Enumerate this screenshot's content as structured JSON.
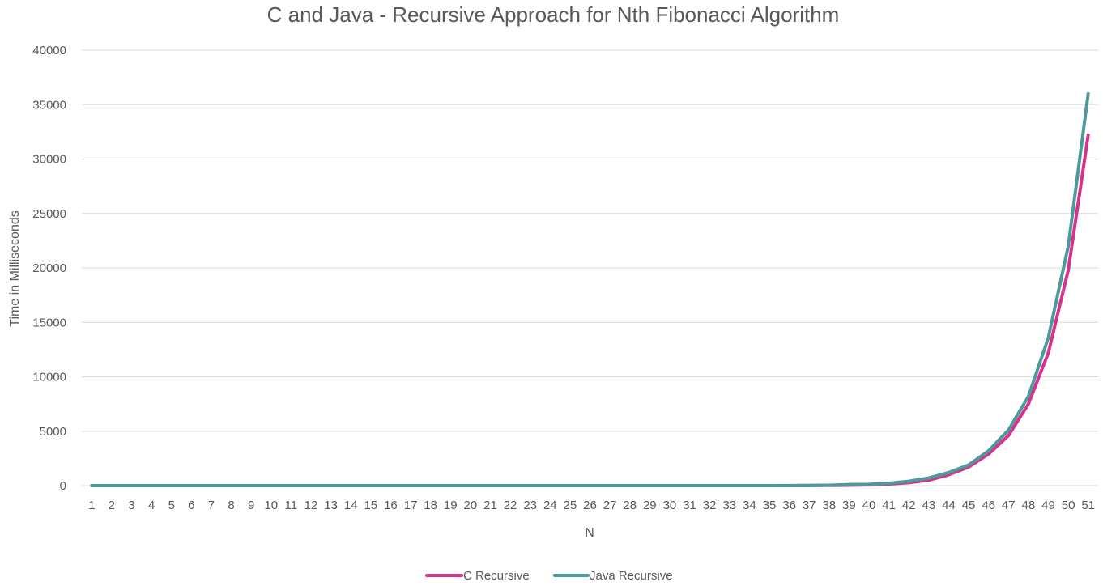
{
  "chart_data": {
    "type": "line",
    "title": "C and Java - Recursive Approach for Nth Fibonacci Algorithm",
    "xlabel": "N",
    "ylabel": "Time in Milliseconds",
    "ylim": [
      0,
      40000
    ],
    "yticks": [
      0,
      5000,
      10000,
      15000,
      20000,
      25000,
      30000,
      35000,
      40000
    ],
    "grid": true,
    "legend": "bottom",
    "categories": [
      "1",
      "2",
      "3",
      "4",
      "5",
      "6",
      "7",
      "8",
      "9",
      "10",
      "11",
      "12",
      "13",
      "14",
      "15",
      "16",
      "17",
      "18",
      "19",
      "20",
      "21",
      "22",
      "23",
      "24",
      "25",
      "26",
      "27",
      "28",
      "29",
      "30",
      "31",
      "32",
      "33",
      "34",
      "35",
      "36",
      "37",
      "38",
      "39",
      "40",
      "41",
      "42",
      "43",
      "44",
      "45",
      "46",
      "47",
      "48",
      "49",
      "50",
      "51"
    ],
    "series": [
      {
        "name": "C Recursive",
        "color": "#d6338f",
        "values": [
          0,
          0,
          0,
          0,
          0,
          0,
          0,
          0,
          0,
          0,
          0,
          0,
          0,
          0,
          0,
          0,
          0,
          0,
          0,
          0,
          0,
          0,
          0,
          0,
          0,
          0,
          0,
          0,
          0,
          0,
          0,
          0,
          0,
          0,
          0,
          0,
          10,
          20,
          40,
          70,
          150,
          270,
          500,
          1000,
          1700,
          2900,
          4600,
          7500,
          12200,
          19800,
          32200
        ]
      },
      {
        "name": "Java Recursive",
        "color": "#4e9a9a",
        "values": [
          0,
          0,
          0,
          0,
          0,
          0,
          0,
          0,
          0,
          0,
          0,
          0,
          0,
          0,
          0,
          0,
          0,
          0,
          0,
          0,
          0,
          0,
          0,
          0,
          0,
          0,
          0,
          0,
          0,
          0,
          0,
          0,
          0,
          0,
          0,
          10,
          20,
          40,
          100,
          120,
          220,
          400,
          700,
          1200,
          1900,
          3200,
          5100,
          8200,
          13600,
          22000,
          36000
        ]
      }
    ]
  }
}
